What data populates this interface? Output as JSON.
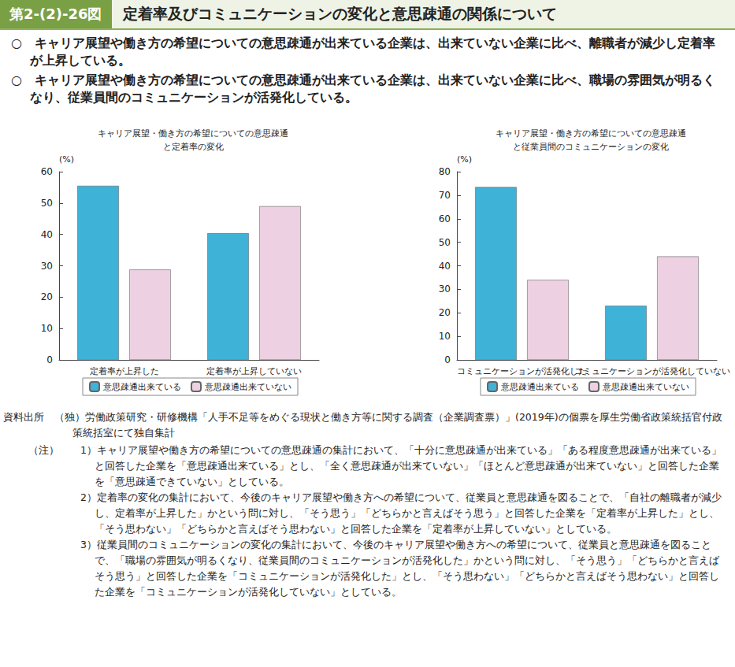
{
  "figure_number": "第2-(2)-26図",
  "figure_title": "定着率及びコミュニケーションの変化と意思疎通の関係について",
  "bullets": [
    "○　キャリア展望や働き方の希望についての意思疎通が出来ている企業は、出来ていない企業に比べ、離職者が減少し定着率が上昇している。",
    "○　キャリア展望や働き方の希望についての意思疎通が出来ている企業は、出来ていない企業に比べ、職場の雰囲気が明るくなり、従業員間のコミュニケーションが活発化している。"
  ],
  "chart_data": [
    {
      "type": "bar",
      "title": "キャリア展望・働き方の希望についての意思疎通\nと定着率の変化",
      "ylabel": "(%)",
      "categories": [
        "定着率が上昇した",
        "定着率が上昇していない"
      ],
      "series": [
        {
          "name": "意思疎通出来ている",
          "color": "#3fb2d8",
          "values": [
            55.5,
            40.4
          ]
        },
        {
          "name": "意思疎通出来ていない",
          "color": "#edd0e2",
          "values": [
            28.8,
            49.0
          ]
        }
      ],
      "ylim": [
        0,
        60
      ],
      "yticks": [
        0,
        10,
        20,
        30,
        40,
        50,
        60
      ],
      "grid": false,
      "legend": "bottom"
    },
    {
      "type": "bar",
      "title": "キャリア展望・働き方の希望についての意思疎通\nと従業員間のコミュニケーションの変化",
      "ylabel": "(%)",
      "categories": [
        "コミュニケーションが活発化した",
        "コミュニケーションが活発化していない"
      ],
      "series": [
        {
          "name": "意思疎通出来ている",
          "color": "#3fb2d8",
          "values": [
            73.5,
            23.0
          ]
        },
        {
          "name": "意思疎通出来ていない",
          "color": "#edd0e2",
          "values": [
            34.0,
            44.0
          ]
        }
      ],
      "ylim": [
        0,
        80
      ],
      "yticks": [
        0,
        10,
        20,
        30,
        40,
        50,
        60,
        70,
        80
      ],
      "grid": false,
      "legend": "bottom"
    }
  ],
  "source": "資料出所　（独）労働政策研究・研修機構「人手不足等をめぐる現状と働き方等に関する調査（企業調査票）」(2019年)の個票を厚生労働省政策統括官付政策統括室にて独自集計",
  "notes_heading": "（注）",
  "notes": [
    "1）キャリア展望や働き方の希望についての意思疎通の集計において、「十分に意思疎通が出来ている」「ある程度意思疎通が出来ている」と回答した企業を「意思疎通出来ている」とし、「全く意思疎通が出来ていない」「ほとんど意思疎通が出来ていない」と回答した企業を「意思疎通できていない」としている。",
    "2）定着率の変化の集計において、今後のキャリア展望や働き方への希望について、従業員と意思疎通を図ることで、「自社の離職者が減少し、定着率が上昇した」かという問に対し、「そう思う」「どちらかと言えばそう思う」と回答した企業を「定着率が上昇した」とし、「そう思わない」「どちらかと言えばそう思わない」と回答した企業を「定着率が上昇していない」としている。",
    "3）従業員間のコミュニケーションの変化の集計において、今後のキャリア展望や働き方への希望について、従業員と意思疎通を図ることで、「職場の雰囲気が明るくなり、従業員間のコミュニケーションが活発化した」かという問に対し、「そう思う」「どちらかと言えばそう思う」と回答した企業を「コミュニケーションが活発化した」とし、「そう思わない」「どちらかと言えばそう思わない」と回答した企業を「コミュニケーションが活発化していない」としている。"
  ]
}
